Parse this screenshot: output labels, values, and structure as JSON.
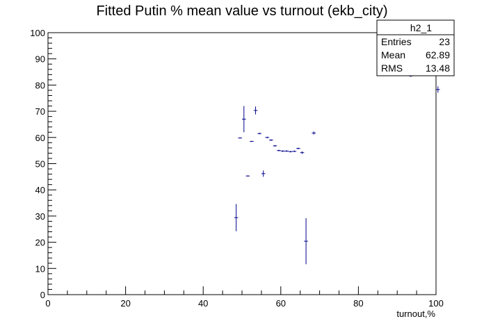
{
  "chart_data": {
    "type": "scatter",
    "title": "Fitted Putin % mean value vs turnout (ekb_city)",
    "xlabel": "turnout,%",
    "ylabel": "",
    "xlim": [
      0,
      100
    ],
    "ylim": [
      0,
      100
    ],
    "x_ticks": [
      0,
      20,
      40,
      60,
      80,
      100
    ],
    "y_ticks": [
      0,
      10,
      20,
      30,
      40,
      50,
      60,
      70,
      80,
      90,
      100
    ],
    "grid": false,
    "series": [
      {
        "color": "#00008b",
        "points": [
          {
            "x": 48.5,
            "y": 29.4,
            "yerr": 5.2
          },
          {
            "x": 49.5,
            "y": 59.8,
            "yerr": 0.2
          },
          {
            "x": 50.5,
            "y": 67.0,
            "yerr": 5.0
          },
          {
            "x": 51.5,
            "y": 45.3,
            "yerr": 0.2
          },
          {
            "x": 52.5,
            "y": 58.5,
            "yerr": 0.2
          },
          {
            "x": 53.5,
            "y": 70.3,
            "yerr": 1.5
          },
          {
            "x": 54.5,
            "y": 61.5,
            "yerr": 0.3
          },
          {
            "x": 55.5,
            "y": 46.2,
            "yerr": 1.2
          },
          {
            "x": 56.5,
            "y": 60.0,
            "yerr": 0.3
          },
          {
            "x": 57.5,
            "y": 59.0,
            "yerr": 0.3
          },
          {
            "x": 58.5,
            "y": 56.8,
            "yerr": 0.3
          },
          {
            "x": 59.5,
            "y": 55.0,
            "yerr": 0.3
          },
          {
            "x": 60.5,
            "y": 54.8,
            "yerr": 0.3
          },
          {
            "x": 61.5,
            "y": 54.8,
            "yerr": 0.3
          },
          {
            "x": 62.5,
            "y": 54.6,
            "yerr": 0.3
          },
          {
            "x": 63.5,
            "y": 54.7,
            "yerr": 0.3
          },
          {
            "x": 64.5,
            "y": 55.8,
            "yerr": 0.3
          },
          {
            "x": 65.5,
            "y": 54.2,
            "yerr": 0.5
          },
          {
            "x": 66.5,
            "y": 20.4,
            "yerr": 8.8
          },
          {
            "x": 68.5,
            "y": 61.7,
            "yerr": 0.6
          },
          {
            "x": 93.5,
            "y": 83.5,
            "yerr": 0.4
          },
          {
            "x": 100.5,
            "y": 78.3,
            "yerr": 1.2
          }
        ]
      }
    ],
    "stats_box": {
      "name": "h2_1",
      "rows": [
        {
          "label": "Entries",
          "value": "23"
        },
        {
          "label": "Mean",
          "value": "62.89"
        },
        {
          "label": "RMS",
          "value": "13.48"
        }
      ]
    }
  }
}
